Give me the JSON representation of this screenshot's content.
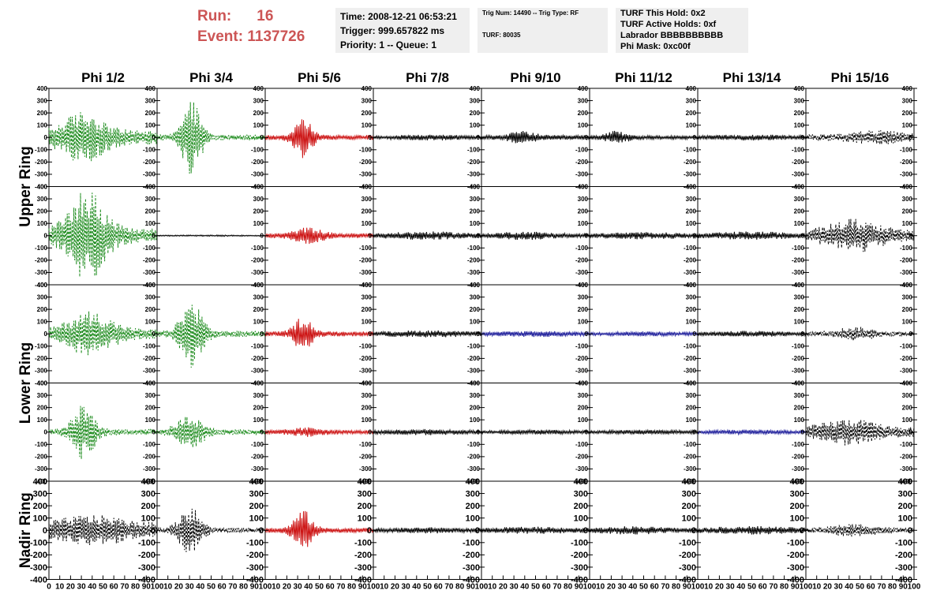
{
  "header": {
    "run_label": "Run:",
    "run_value": "16",
    "event_label": "Event:",
    "event_value": "1137726",
    "time_info": [
      "Time: 2008-12-21 06:53:21",
      "Trigger: 999.657822 ms",
      "Priority: 1 -- Queue: 1"
    ],
    "trig_info": [
      "Trig Num: 14490 -- Trig Type: RF",
      "TURF: 80035"
    ],
    "turf_info": [
      "TURF This Hold: 0x2",
      "TURF Active Holds: 0xf",
      "Labrador BBBBBBBBBB",
      "Phi Mask: 0xc00f"
    ]
  },
  "chart_data": {
    "type": "line",
    "columns": [
      "Phi 1/2",
      "Phi 3/4",
      "Phi 5/6",
      "Phi 7/8",
      "Phi 9/10",
      "Phi 11/12",
      "Phi 13/14",
      "Phi 15/16"
    ],
    "ring_labels": [
      {
        "label": "Upper Ring",
        "rows": [
          0,
          1
        ]
      },
      {
        "label": "Lower Ring",
        "rows": [
          2,
          3
        ]
      },
      {
        "label": "Nadir Ring",
        "rows": [
          4
        ]
      }
    ],
    "xlim": [
      0,
      100
    ],
    "ylim": [
      -400,
      400
    ],
    "x_ticks": [
      "0",
      "10",
      "20",
      "30",
      "40",
      "50",
      "60",
      "70",
      "80",
      "90",
      "100"
    ],
    "y_ticks": [
      "400",
      "300",
      "200",
      "100",
      "0",
      "-100",
      "-200",
      "-300",
      "-400"
    ],
    "colors": {
      "green": "#1a8a1a",
      "red": "#cc1111",
      "black": "#000000",
      "blue": "#1a1a99"
    },
    "rows": [
      [
        {
          "color": "green",
          "style": "dashed",
          "peak": 220,
          "center": 32,
          "spread": 22,
          "base": 60
        },
        {
          "color": "green",
          "style": "dashed",
          "peak": 320,
          "center": 32,
          "spread": 10,
          "base": 25
        },
        {
          "color": "red",
          "style": "solid",
          "peak": 170,
          "center": 35,
          "spread": 10,
          "base": 20
        },
        {
          "color": "black",
          "style": "solid",
          "peak": 25,
          "center": 50,
          "spread": 40,
          "base": 10
        },
        {
          "color": "black",
          "style": "solid",
          "peak": 55,
          "center": 38,
          "spread": 14,
          "base": 18
        },
        {
          "color": "black",
          "style": "solid",
          "peak": 55,
          "center": 25,
          "spread": 12,
          "base": 15
        },
        {
          "color": "black",
          "style": "solid",
          "peak": 25,
          "center": 50,
          "spread": 40,
          "base": 12
        },
        {
          "color": "black",
          "style": "dashed",
          "peak": 60,
          "center": 65,
          "spread": 30,
          "base": 25
        }
      ],
      [
        {
          "color": "green",
          "style": "dashed",
          "peak": 400,
          "center": 35,
          "spread": 20,
          "base": 60
        },
        {
          "color": "black",
          "style": "solid",
          "peak": 6,
          "center": 50,
          "spread": 50,
          "base": 4
        },
        {
          "color": "red",
          "style": "solid",
          "peak": 70,
          "center": 40,
          "spread": 15,
          "base": 20
        },
        {
          "color": "black",
          "style": "solid",
          "peak": 35,
          "center": 50,
          "spread": 40,
          "base": 15
        },
        {
          "color": "black",
          "style": "solid",
          "peak": 35,
          "center": 40,
          "spread": 30,
          "base": 15
        },
        {
          "color": "black",
          "style": "solid",
          "peak": 30,
          "center": 50,
          "spread": 40,
          "base": 15
        },
        {
          "color": "black",
          "style": "solid",
          "peak": 35,
          "center": 50,
          "spread": 40,
          "base": 15
        },
        {
          "color": "black",
          "style": "dashed",
          "peak": 140,
          "center": 45,
          "spread": 30,
          "base": 40
        }
      ],
      [
        {
          "color": "green",
          "style": "dashed",
          "peak": 190,
          "center": 38,
          "spread": 25,
          "base": 40
        },
        {
          "color": "green",
          "style": "dashed",
          "peak": 280,
          "center": 32,
          "spread": 12,
          "base": 25
        },
        {
          "color": "red",
          "style": "solid",
          "peak": 150,
          "center": 35,
          "spread": 10,
          "base": 20
        },
        {
          "color": "black",
          "style": "solid",
          "peak": 30,
          "center": 50,
          "spread": 40,
          "base": 15
        },
        {
          "color": "blue",
          "style": "solid",
          "peak": 25,
          "center": 50,
          "spread": 40,
          "base": 12
        },
        {
          "color": "blue",
          "style": "solid",
          "peak": 20,
          "center": 50,
          "spread": 40,
          "base": 10
        },
        {
          "color": "black",
          "style": "solid",
          "peak": 25,
          "center": 50,
          "spread": 40,
          "base": 12
        },
        {
          "color": "black",
          "style": "dashed",
          "peak": 60,
          "center": 45,
          "spread": 20,
          "base": 20
        }
      ],
      [
        {
          "color": "green",
          "style": "dashed",
          "peak": 230,
          "center": 32,
          "spread": 12,
          "base": 25
        },
        {
          "color": "green",
          "style": "dashed",
          "peak": 150,
          "center": 30,
          "spread": 14,
          "base": 25
        },
        {
          "color": "red",
          "style": "solid",
          "peak": 40,
          "center": 40,
          "spread": 20,
          "base": 15
        },
        {
          "color": "black",
          "style": "solid",
          "peak": 25,
          "center": 50,
          "spread": 40,
          "base": 12
        },
        {
          "color": "black",
          "style": "solid",
          "peak": 20,
          "center": 50,
          "spread": 40,
          "base": 10
        },
        {
          "color": "black",
          "style": "solid",
          "peak": 20,
          "center": 50,
          "spread": 40,
          "base": 10
        },
        {
          "color": "blue",
          "style": "solid",
          "peak": 20,
          "center": 50,
          "spread": 40,
          "base": 10
        },
        {
          "color": "black",
          "style": "dashed",
          "peak": 110,
          "center": 40,
          "spread": 30,
          "base": 40
        }
      ],
      [
        {
          "color": "black",
          "style": "dashed",
          "peak": 130,
          "center": 40,
          "spread": 35,
          "base": 60
        },
        {
          "color": "black",
          "style": "dashed",
          "peak": 200,
          "center": 30,
          "spread": 12,
          "base": 20
        },
        {
          "color": "red",
          "style": "solid",
          "peak": 170,
          "center": 35,
          "spread": 10,
          "base": 20
        },
        {
          "color": "black",
          "style": "solid",
          "peak": 25,
          "center": 50,
          "spread": 40,
          "base": 12
        },
        {
          "color": "black",
          "style": "solid",
          "peak": 30,
          "center": 50,
          "spread": 40,
          "base": 15
        },
        {
          "color": "black",
          "style": "solid",
          "peak": 35,
          "center": 40,
          "spread": 30,
          "base": 18
        },
        {
          "color": "black",
          "style": "solid",
          "peak": 35,
          "center": 50,
          "spread": 40,
          "base": 18
        },
        {
          "color": "black",
          "style": "dashed",
          "peak": 55,
          "center": 45,
          "spread": 25,
          "base": 20
        }
      ]
    ]
  }
}
